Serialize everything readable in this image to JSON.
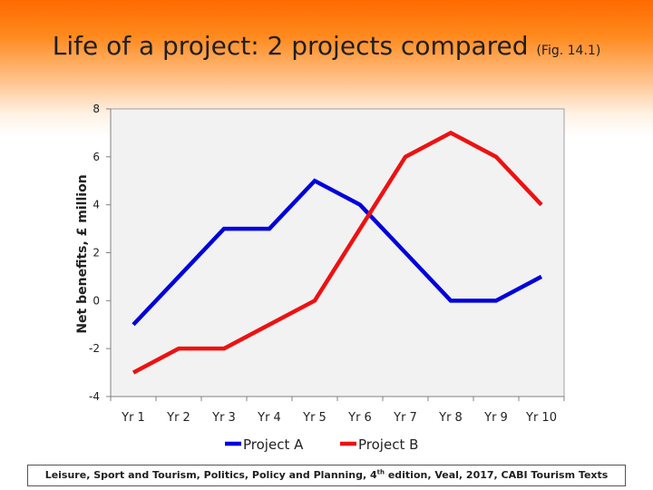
{
  "title": {
    "main": "Life of a project:  2 projects compared",
    "suffix": "(Fig. 14.1)"
  },
  "footer": {
    "text_before": "Leisure, Sport and Tourism, Politics, Policy and Planning, 4",
    "superscript": "th",
    "text_after": " edition, Veal, 2017, CABI Tourism Texts"
  },
  "chart_data": {
    "type": "line",
    "title": "Life of a project:  2 projects compared",
    "xlabel": "",
    "ylabel": "Net benefits, £ million",
    "categories": [
      "Yr 1",
      "Yr 2",
      "Yr 3",
      "Yr 4",
      "Yr 5",
      "Yr 6",
      "Yr 7",
      "Yr 8",
      "Yr 9",
      "Yr 10"
    ],
    "ylim": [
      -4,
      8
    ],
    "yticks": [
      "-4",
      "-2",
      "0",
      "2",
      "4",
      "6",
      "8"
    ],
    "grid": false,
    "legend": "bottom",
    "series": [
      {
        "name": "Project A",
        "color": "#0000dd",
        "values": [
          -1,
          1,
          3,
          3,
          5,
          4,
          2,
          0,
          0,
          1
        ]
      },
      {
        "name": "Project B",
        "color": "#ee1111",
        "values": [
          -3,
          -2,
          -2,
          -1,
          0,
          3,
          6,
          7,
          6,
          4
        ]
      }
    ]
  }
}
